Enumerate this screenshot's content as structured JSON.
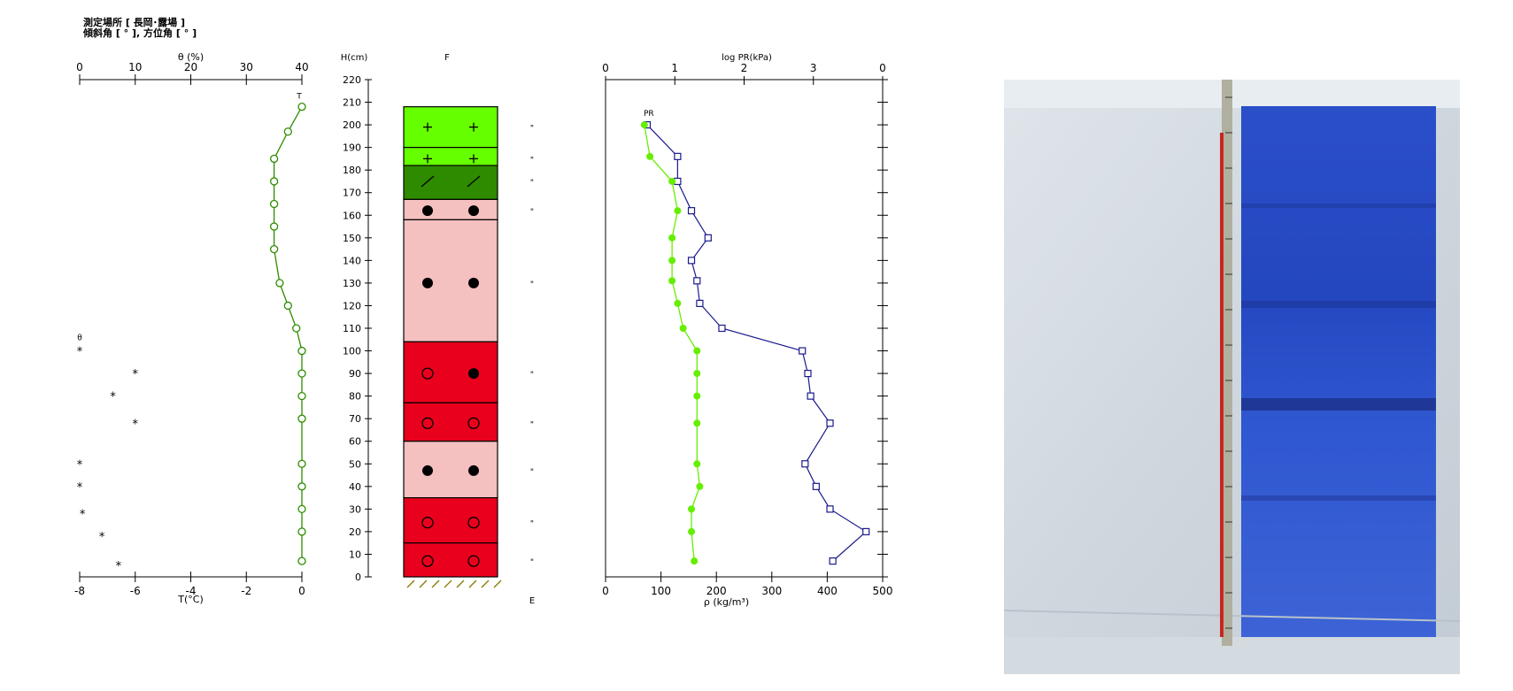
{
  "header": {
    "line1": "測定場所 [ 長岡･露場 ]",
    "line2": "傾斜角 [ ° ], 方位角 [ ° ]"
  },
  "photo": {
    "caption": "snow-pit-wall-photo"
  },
  "chart_data": [
    {
      "id": "temperature-moisture",
      "type": "line",
      "title_top": "θ (%)",
      "xlabel": "T(°C)",
      "theta_ticks": [
        0,
        10,
        20,
        30,
        40
      ],
      "theta_range": [
        0,
        40
      ],
      "temp_ticks": [
        "-8",
        "-6",
        "-4",
        "-2",
        "0"
      ],
      "temp_range": [
        -8,
        0
      ],
      "series": [
        {
          "name": "T",
          "color": "#2e8b00",
          "marker": "circle",
          "points": [
            [
              0.0,
              208
            ],
            [
              -0.5,
              197
            ],
            [
              -1.0,
              185
            ],
            [
              -1.0,
              175
            ],
            [
              -1.0,
              165
            ],
            [
              -1.0,
              155
            ],
            [
              -1.0,
              145
            ],
            [
              -0.8,
              130
            ],
            [
              -0.5,
              120
            ],
            [
              -0.2,
              110
            ],
            [
              0.0,
              100
            ],
            [
              0.0,
              90
            ],
            [
              0.0,
              80
            ],
            [
              0.0,
              70
            ],
            [
              0.0,
              50
            ],
            [
              0.0,
              40
            ],
            [
              0.0,
              30
            ],
            [
              0.0,
              20
            ],
            [
              0.0,
              7
            ]
          ]
        },
        {
          "name": "θ",
          "marker": "asterisk",
          "points": [
            [
              0,
              100
            ],
            [
              10,
              90
            ],
            [
              6,
              80
            ],
            [
              10,
              68
            ],
            [
              0,
              50
            ],
            [
              0,
              40
            ],
            [
              0.5,
              28
            ],
            [
              4,
              18
            ],
            [
              7,
              5
            ]
          ]
        }
      ],
      "series_labels": {
        "T": "T",
        "theta": "θ"
      }
    },
    {
      "id": "snow-layers",
      "type": "table",
      "ylabel": "H(cm)",
      "col_label": "F",
      "bottom_label": "E",
      "h_ticks": [
        0,
        10,
        20,
        30,
        40,
        50,
        60,
        70,
        80,
        90,
        100,
        110,
        120,
        130,
        140,
        150,
        160,
        170,
        180,
        190,
        200,
        210,
        220
      ],
      "total_height": 208,
      "layers": [
        {
          "bottom": 190,
          "top": 208,
          "color": "#66ff00",
          "symbol": "plus",
          "sym_h": 199,
          "hard": "\""
        },
        {
          "bottom": 182,
          "top": 190,
          "color": "#66ff00",
          "symbol": "plus",
          "sym_h": 185,
          "hard": "\""
        },
        {
          "bottom": 167,
          "top": 182,
          "color": "#2e8b00",
          "symbol": "slash",
          "sym_h": 175,
          "hard": "\""
        },
        {
          "bottom": 158,
          "top": 167,
          "color": "#f5c0c0",
          "symbol": "dot",
          "sym_h": 162,
          "hard": "\""
        },
        {
          "bottom": 104,
          "top": 158,
          "color": "#f5c0c0",
          "symbol": "dot",
          "sym_h": 130,
          "hard": "\""
        },
        {
          "bottom": 77,
          "top": 104,
          "color": "#e8001c",
          "symbol": "ring-dot",
          "sym_h": 90,
          "hard": "\""
        },
        {
          "bottom": 60,
          "top": 77,
          "color": "#e8001c",
          "symbol": "ring",
          "sym_h": 68,
          "hard": "\""
        },
        {
          "bottom": 35,
          "top": 60,
          "color": "#f5c0c0",
          "symbol": "dot",
          "sym_h": 47,
          "hard": "\""
        },
        {
          "bottom": 15,
          "top": 35,
          "color": "#e8001c",
          "symbol": "ring",
          "sym_h": 24,
          "hard": "\""
        },
        {
          "bottom": 0,
          "top": 15,
          "color": "#e8001c",
          "symbol": "ring",
          "sym_h": 7,
          "hard": "\""
        }
      ]
    },
    {
      "id": "density-resistance",
      "type": "line",
      "title_top": "log PR(kPa)",
      "xlabel": "ρ (kg/m³)",
      "pr_ticks": [
        "0",
        "1",
        "2",
        "3",
        "0"
      ],
      "rho_ticks": [
        0,
        100,
        200,
        300,
        400,
        500
      ],
      "rho_range": [
        0,
        500
      ],
      "series": [
        {
          "name": "ρ",
          "color": "#1a1a8c",
          "marker": "square",
          "points": [
            [
              75,
              200
            ],
            [
              130,
              186
            ],
            [
              130,
              175
            ],
            [
              155,
              162
            ],
            [
              185,
              150
            ],
            [
              155,
              140
            ],
            [
              165,
              131
            ],
            [
              170,
              121
            ],
            [
              210,
              110
            ],
            [
              355,
              100
            ],
            [
              365,
              90
            ],
            [
              370,
              80
            ],
            [
              405,
              68
            ],
            [
              360,
              50
            ],
            [
              380,
              40
            ],
            [
              405,
              30
            ],
            [
              470,
              20
            ],
            [
              410,
              7
            ]
          ]
        },
        {
          "name": "PR",
          "color": "#66ee00",
          "marker": "dot",
          "points": [
            [
              70,
              200
            ],
            [
              80,
              186
            ],
            [
              120,
              175
            ],
            [
              130,
              162
            ],
            [
              120,
              150
            ],
            [
              120,
              140
            ],
            [
              120,
              131
            ],
            [
              130,
              121
            ],
            [
              140,
              110
            ],
            [
              165,
              100
            ],
            [
              165,
              90
            ],
            [
              165,
              80
            ],
            [
              165,
              68
            ],
            [
              165,
              50
            ],
            [
              170,
              40
            ],
            [
              155,
              30
            ],
            [
              155,
              20
            ],
            [
              160,
              7
            ]
          ]
        }
      ],
      "series_labels": {
        "PR": "PR"
      }
    }
  ]
}
